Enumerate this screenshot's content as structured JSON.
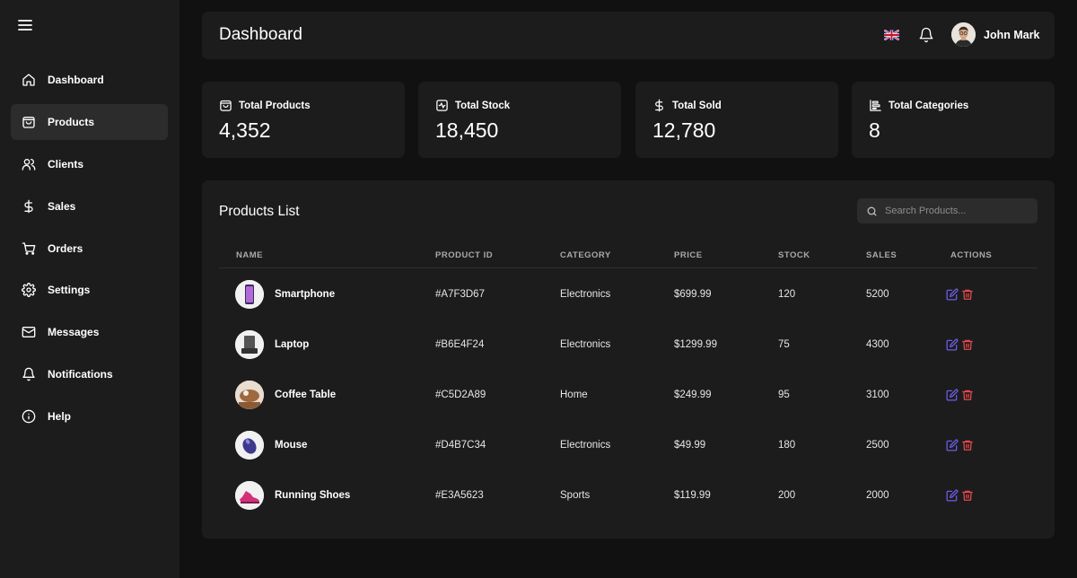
{
  "sidebar": {
    "menu_icon": "hamburger-menu-icon",
    "items": [
      {
        "label": "Dashboard",
        "icon": "home-icon",
        "active": false
      },
      {
        "label": "Products",
        "icon": "shopping-bag-icon",
        "active": true
      },
      {
        "label": "Clients",
        "icon": "users-icon",
        "active": false
      },
      {
        "label": "Sales",
        "icon": "dollar-icon",
        "active": false
      },
      {
        "label": "Orders",
        "icon": "cart-icon",
        "active": false
      },
      {
        "label": "Settings",
        "icon": "gear-icon",
        "active": false
      },
      {
        "label": "Messages",
        "icon": "mail-icon",
        "active": false
      },
      {
        "label": "Notifications",
        "icon": "bell-icon",
        "active": false
      },
      {
        "label": "Help",
        "icon": "info-icon",
        "active": false
      }
    ]
  },
  "header": {
    "title": "Dashboard",
    "language_icon": "uk-flag-icon",
    "notification_icon": "bell-icon",
    "user_name": "John Mark"
  },
  "stats": [
    {
      "label": "Total Products",
      "value": "4,352",
      "icon": "shopping-bag-icon"
    },
    {
      "label": "Total Stock",
      "value": "18,450",
      "icon": "activity-square-icon"
    },
    {
      "label": "Total Sold",
      "value": "12,780",
      "icon": "dollar-icon"
    },
    {
      "label": "Total Categories",
      "value": "8",
      "icon": "category-chart-icon"
    }
  ],
  "products": {
    "title": "Products List",
    "search_placeholder": "Search Products...",
    "columns": [
      "NAME",
      "PRODUCT ID",
      "CATEGORY",
      "PRICE",
      "STOCK",
      "SALES",
      "ACTIONS"
    ],
    "rows": [
      {
        "name": "Smartphone",
        "id": "#A7F3D67",
        "category": "Electronics",
        "price": "$699.99",
        "stock": "120",
        "sales": "5200",
        "thumb": "smartphone-image"
      },
      {
        "name": "Laptop",
        "id": "#B6E4F24",
        "category": "Electronics",
        "price": "$1299.99",
        "stock": "75",
        "sales": "4300",
        "thumb": "laptop-image"
      },
      {
        "name": "Coffee Table",
        "id": "#C5D2A89",
        "category": "Home",
        "price": "$249.99",
        "stock": "95",
        "sales": "3100",
        "thumb": "coffee-table-image"
      },
      {
        "name": "Mouse",
        "id": "#D4B7C34",
        "category": "Electronics",
        "price": "$49.99",
        "stock": "180",
        "sales": "2500",
        "thumb": "mouse-image"
      },
      {
        "name": "Running Shoes",
        "id": "#E3A5623",
        "category": "Sports",
        "price": "$119.99",
        "stock": "200",
        "sales": "2000",
        "thumb": "running-shoes-image"
      }
    ]
  },
  "colors": {
    "background": "#111111",
    "surface": "#1c1c1c",
    "active_nav": "#2c2c2c",
    "edit_accent": "#6d5ce8",
    "delete_accent": "#e5484d"
  }
}
